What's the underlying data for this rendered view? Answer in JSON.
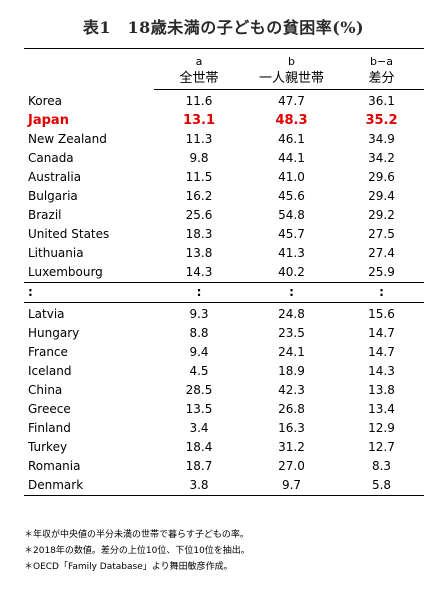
{
  "title": "表1　18歳未満の子どもの貧困率(%)",
  "columns": [
    {
      "letter": "a",
      "label": "全世帯"
    },
    {
      "letter": "b",
      "label": "一人親世帯"
    },
    {
      "letter": "b−a",
      "label": "差分"
    }
  ],
  "top_rows": [
    {
      "country": "Korea",
      "a": "11.6",
      "b": "47.7",
      "ba": "36.1"
    },
    {
      "country": "Japan",
      "a": "13.1",
      "b": "48.3",
      "ba": "35.2"
    },
    {
      "country": "New Zealand",
      "a": "11.3",
      "b": "46.1",
      "ba": "34.9"
    },
    {
      "country": "Canada",
      "a": "9.8",
      "b": "44.1",
      "ba": "34.2"
    },
    {
      "country": "Australia",
      "a": "11.5",
      "b": "41.0",
      "ba": "29.6"
    },
    {
      "country": "Bulgaria",
      "a": "16.2",
      "b": "45.6",
      "ba": "29.4"
    },
    {
      "country": "Brazil",
      "a": "25.6",
      "b": "54.8",
      "ba": "29.2"
    },
    {
      "country": "United States",
      "a": "18.3",
      "b": "45.7",
      "ba": "27.5"
    },
    {
      "country": "Lithuania",
      "a": "13.8",
      "b": "41.3",
      "ba": "27.4"
    },
    {
      "country": "Luxembourg",
      "a": "14.3",
      "b": "40.2",
      "ba": "25.9"
    }
  ],
  "separator": ":",
  "bottom_rows": [
    {
      "country": "Latvia",
      "a": "9.3",
      "b": "24.8",
      "ba": "15.6"
    },
    {
      "country": "Hungary",
      "a": "8.8",
      "b": "23.5",
      "ba": "14.7"
    },
    {
      "country": "France",
      "a": "9.4",
      "b": "24.1",
      "ba": "14.7"
    },
    {
      "country": "Iceland",
      "a": "4.5",
      "b": "18.9",
      "ba": "14.3"
    },
    {
      "country": "China",
      "a": "28.5",
      "b": "42.3",
      "ba": "13.8"
    },
    {
      "country": "Greece",
      "a": "13.5",
      "b": "26.8",
      "ba": "13.4"
    },
    {
      "country": "Finland",
      "a": "3.4",
      "b": "16.3",
      "ba": "12.9"
    },
    {
      "country": "Turkey",
      "a": "18.4",
      "b": "31.2",
      "ba": "12.7"
    },
    {
      "country": "Romania",
      "a": "18.7",
      "b": "27.0",
      "ba": "8.3"
    },
    {
      "country": "Denmark",
      "a": "3.8",
      "b": "9.7",
      "ba": "5.8"
    }
  ],
  "highlight_color": "#e00000",
  "notes": [
    "＊年収が中央値の半分未満の世帯で暮らす子どもの率。",
    "＊2018年の数値。差分の上位10位、下位10位を抽出。",
    "＊OECD「Family Database」より舞田敏彦作成。"
  ]
}
